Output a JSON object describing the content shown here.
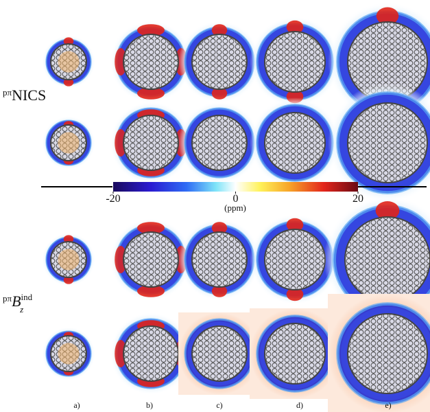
{
  "row_labels": [
    {
      "prefix": "pπ",
      "text": "NICS"
    },
    {
      "prefix": "pπ",
      "symbol": "B",
      "sup": "ind",
      "sub": "z"
    }
  ],
  "colorbar": {
    "range": [
      -20,
      20
    ],
    "ticks": [
      -20,
      0,
      20
    ],
    "label": "(ppm)"
  },
  "column_labels": [
    "a)",
    "b)",
    "c)",
    "d)",
    "e)"
  ]
}
